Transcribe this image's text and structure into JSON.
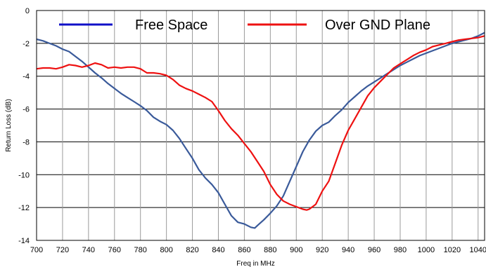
{
  "chart_data": {
    "type": "line",
    "title": "",
    "xlabel": "Freq in MHz",
    "ylabel": "Return Loss (dB)",
    "xlim": [
      700,
      1045
    ],
    "ylim": [
      -14,
      0
    ],
    "x_ticks": [
      700,
      720,
      740,
      760,
      780,
      800,
      820,
      840,
      860,
      880,
      900,
      920,
      940,
      960,
      980,
      1000,
      1020,
      1040
    ],
    "y_ticks": [
      0,
      -2,
      -4,
      -6,
      -8,
      -10,
      -12,
      -14
    ],
    "grid": true,
    "legend_position": "top",
    "series": [
      {
        "name": "Free Space",
        "legend_color": "#1010c8",
        "color": "#3a5a9a",
        "x": [
          700,
          705,
          710,
          715,
          720,
          725,
          730,
          735,
          740,
          745,
          750,
          755,
          760,
          765,
          770,
          775,
          780,
          785,
          790,
          795,
          800,
          805,
          810,
          815,
          820,
          825,
          830,
          835,
          840,
          845,
          850,
          855,
          860,
          865,
          868,
          870,
          875,
          880,
          885,
          890,
          895,
          900,
          905,
          910,
          915,
          920,
          925,
          930,
          935,
          940,
          945,
          950,
          955,
          960,
          965,
          970,
          975,
          980,
          985,
          990,
          995,
          1000,
          1005,
          1010,
          1015,
          1020,
          1025,
          1030,
          1035,
          1040,
          1045
        ],
        "values": [
          -1.75,
          -1.85,
          -2.0,
          -2.15,
          -2.35,
          -2.5,
          -2.8,
          -3.1,
          -3.45,
          -3.8,
          -4.1,
          -4.45,
          -4.75,
          -5.05,
          -5.3,
          -5.55,
          -5.8,
          -6.1,
          -6.5,
          -6.75,
          -6.95,
          -7.3,
          -7.8,
          -8.4,
          -9.0,
          -9.7,
          -10.2,
          -10.6,
          -11.1,
          -11.8,
          -12.5,
          -12.9,
          -13.0,
          -13.2,
          -13.25,
          -13.1,
          -12.75,
          -12.35,
          -11.9,
          -11.3,
          -10.4,
          -9.5,
          -8.6,
          -7.9,
          -7.35,
          -7.0,
          -6.8,
          -6.4,
          -6.05,
          -5.6,
          -5.25,
          -4.9,
          -4.6,
          -4.35,
          -4.1,
          -3.85,
          -3.6,
          -3.35,
          -3.15,
          -2.95,
          -2.75,
          -2.6,
          -2.45,
          -2.3,
          -2.15,
          -2.0,
          -1.9,
          -1.8,
          -1.7,
          -1.55,
          -1.35
        ]
      },
      {
        "name": "Over GND Plane",
        "legend_color": "#ee1111",
        "color": "#ee1111",
        "x": [
          700,
          705,
          710,
          715,
          720,
          725,
          730,
          735,
          740,
          745,
          750,
          755,
          760,
          765,
          770,
          775,
          780,
          785,
          790,
          795,
          800,
          805,
          810,
          815,
          820,
          825,
          830,
          835,
          840,
          845,
          850,
          855,
          860,
          865,
          870,
          875,
          880,
          885,
          890,
          895,
          900,
          905,
          908,
          910,
          915,
          920,
          925,
          930,
          935,
          940,
          945,
          950,
          955,
          960,
          965,
          970,
          975,
          980,
          985,
          990,
          995,
          1000,
          1005,
          1010,
          1015,
          1020,
          1025,
          1030,
          1035,
          1040,
          1045
        ],
        "values": [
          -3.55,
          -3.5,
          -3.5,
          -3.55,
          -3.45,
          -3.3,
          -3.35,
          -3.45,
          -3.35,
          -3.2,
          -3.3,
          -3.5,
          -3.45,
          -3.5,
          -3.45,
          -3.45,
          -3.55,
          -3.8,
          -3.8,
          -3.85,
          -3.95,
          -4.2,
          -4.55,
          -4.75,
          -4.9,
          -5.1,
          -5.3,
          -5.55,
          -6.1,
          -6.7,
          -7.2,
          -7.6,
          -8.1,
          -8.6,
          -9.2,
          -9.8,
          -10.6,
          -11.2,
          -11.6,
          -11.8,
          -11.95,
          -12.1,
          -12.15,
          -12.1,
          -11.8,
          -11.0,
          -10.4,
          -9.3,
          -8.2,
          -7.3,
          -6.6,
          -5.9,
          -5.2,
          -4.7,
          -4.3,
          -3.9,
          -3.5,
          -3.25,
          -3.0,
          -2.75,
          -2.55,
          -2.4,
          -2.2,
          -2.1,
          -2.0,
          -1.9,
          -1.8,
          -1.75,
          -1.7,
          -1.65,
          -1.55
        ]
      }
    ]
  }
}
